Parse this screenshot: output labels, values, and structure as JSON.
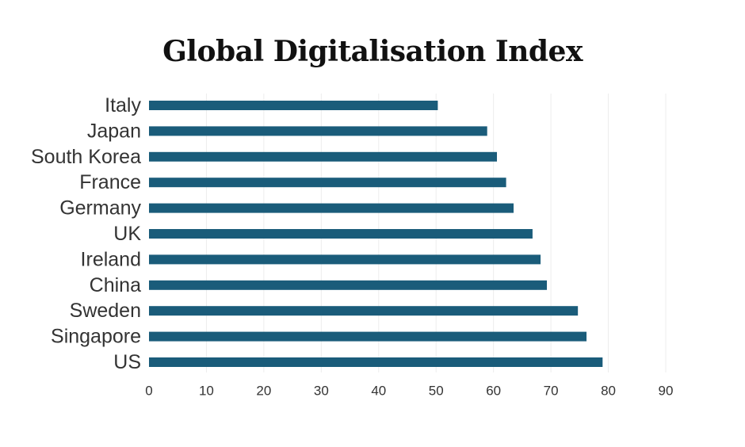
{
  "chart_data": {
    "type": "bar",
    "orientation": "horizontal",
    "title": "Global Digitalisation Index",
    "xlabel": "",
    "ylabel": "",
    "categories": [
      "Italy",
      "Japan",
      "South Korea",
      "France",
      "Germany",
      "UK",
      "Ireland",
      "China",
      "Sweden",
      "Singapore",
      "US"
    ],
    "values": [
      50.3,
      58.9,
      60.6,
      62.2,
      63.5,
      66.8,
      68.2,
      69.3,
      74.7,
      76.2,
      79.0
    ],
    "xlim": [
      0,
      90
    ],
    "xticks": [
      0,
      10,
      20,
      30,
      40,
      50,
      60,
      70,
      80,
      90
    ],
    "grid": "vertical",
    "legend": "none",
    "colors": {
      "bar": "#1a5c7a",
      "grid": "#ececec",
      "text": "#333333"
    }
  }
}
